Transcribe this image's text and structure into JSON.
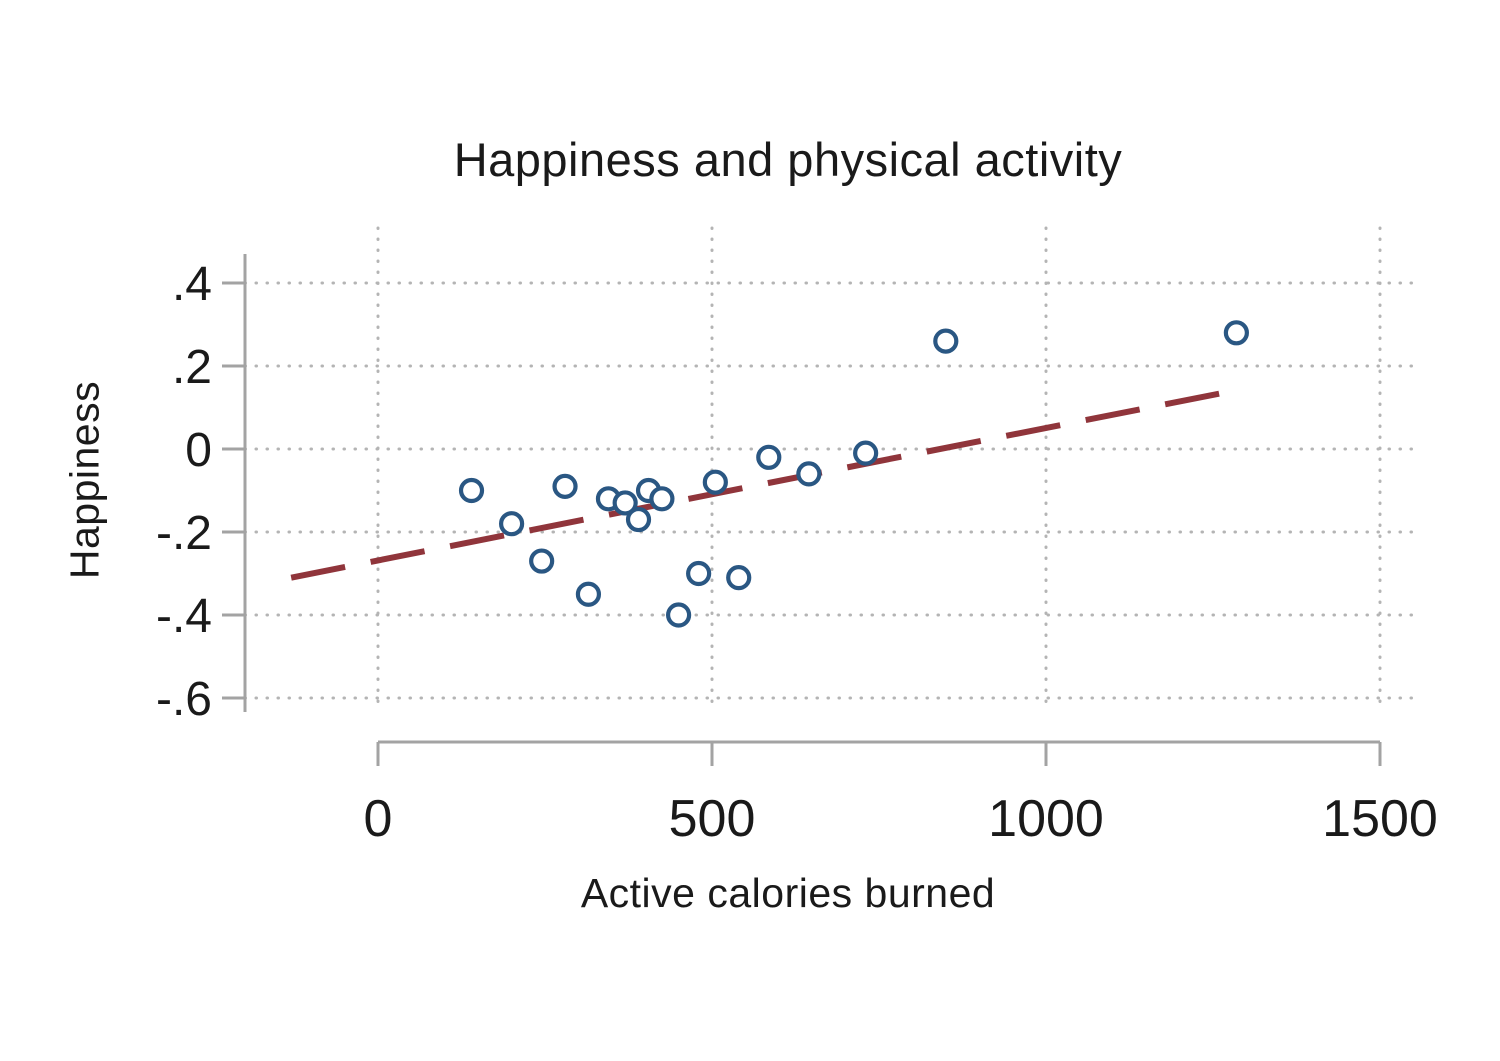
{
  "page": {
    "background": "#ffffff"
  },
  "chart_data": {
    "type": "scatter",
    "title": "Happiness and physical activity",
    "xlabel": "Active calories burned",
    "ylabel": "Happiness",
    "x_ticks": [
      0,
      500,
      1000,
      1500
    ],
    "x_tick_labels": [
      "0",
      "500",
      "1000",
      "1500"
    ],
    "y_ticks": [
      0.4,
      0.2,
      0,
      -0.2,
      -0.4,
      -0.6
    ],
    "y_tick_labels": [
      ".4",
      ".2",
      "0",
      "-.2",
      "-.4",
      "-.6"
    ],
    "xlim": [
      -200,
      1548
    ],
    "ylim": [
      -0.71,
      0.53
    ],
    "grid": true,
    "legend": "none",
    "points": [
      [
        140,
        -0.1
      ],
      [
        200,
        -0.18
      ],
      [
        245,
        -0.27
      ],
      [
        280,
        -0.09
      ],
      [
        315,
        -0.35
      ],
      [
        345,
        -0.12
      ],
      [
        370,
        -0.13
      ],
      [
        390,
        -0.17
      ],
      [
        405,
        -0.1
      ],
      [
        425,
        -0.12
      ],
      [
        450,
        -0.4
      ],
      [
        480,
        -0.3
      ],
      [
        505,
        -0.08
      ],
      [
        540,
        -0.31
      ],
      [
        585,
        -0.02
      ],
      [
        645,
        -0.06
      ],
      [
        730,
        -0.01
      ],
      [
        850,
        0.26
      ],
      [
        1285,
        0.28
      ]
    ],
    "fit_line": {
      "x1": -130,
      "y1": -0.31,
      "x2": 1280,
      "y2": 0.14
    },
    "colors": {
      "point_stroke": "#2a5783",
      "fit_line": "#90353b",
      "grid": "#b4b4b4",
      "axis": "#a3a3a3",
      "text": "#1a1a1a"
    }
  }
}
